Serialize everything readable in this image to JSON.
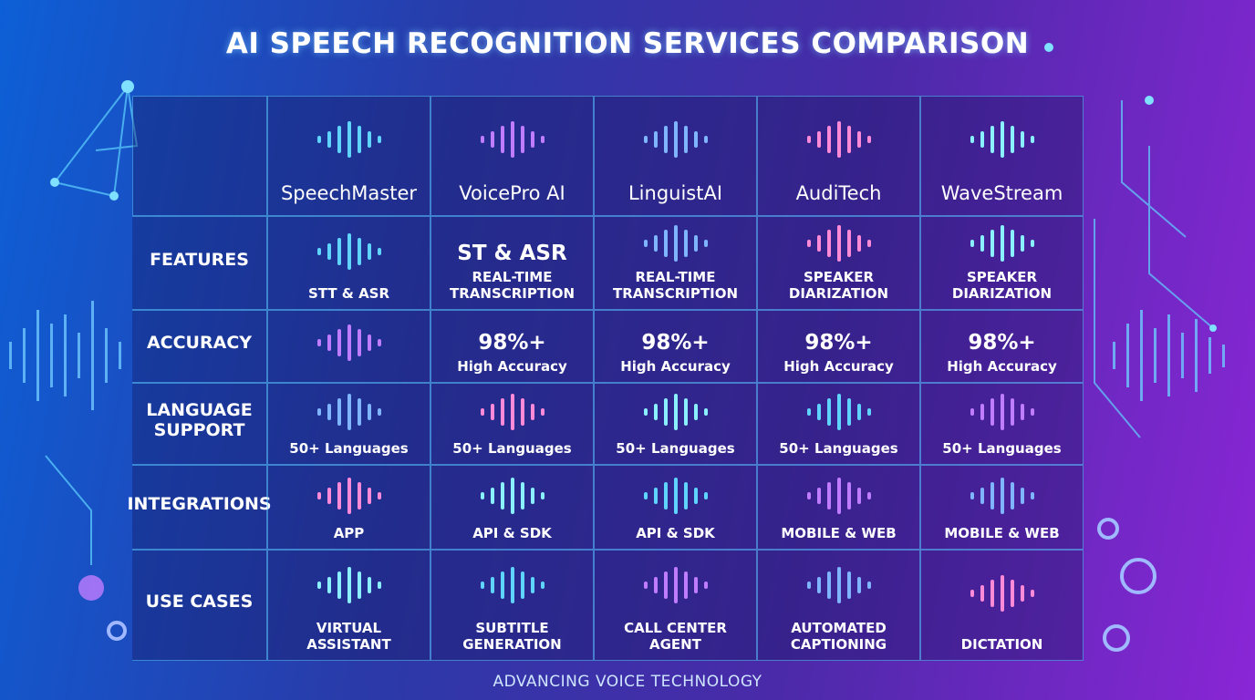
{
  "title": "AI SPEECH RECOGNITION SERVICES COMPARISON",
  "services": [
    "SpeechMaster",
    "VoicePro AI",
    "LinguistAI",
    "AudiTech",
    "WaveStream"
  ],
  "rows": [
    {
      "label": "FEATURES",
      "cells": [
        [
          "STT & ASR"
        ],
        [
          "ST & ASR",
          "REAL-TIME TRANSCRIPTION"
        ],
        [
          "REAL-TIME TRANSCRIPTION"
        ],
        [
          "SPEAKER DIARIZATION"
        ],
        [
          "SPEAKER DIARIZATION"
        ]
      ]
    },
    {
      "label": "ACCURACY",
      "cells": [
        [],
        [
          "98%+",
          "High Accuracy"
        ],
        [
          "98%+",
          "High Accuracy"
        ],
        [
          "98%+",
          "High Accuracy"
        ],
        [
          "98%+",
          "High Accuracy"
        ]
      ]
    },
    {
      "label": "LANGUAGE SUPPORT",
      "cells": [
        [
          "50+ Languages"
        ],
        [
          "50+ Languages"
        ],
        [
          "50+ Languages"
        ],
        [
          "50+ Languages"
        ],
        [
          "50+ Languages"
        ]
      ]
    },
    {
      "label": "INTEGRATIONS",
      "cells": [
        [
          "APP"
        ],
        [
          "API & SDK"
        ],
        [
          "API & SDK"
        ],
        [
          "MOBILE & WEB"
        ],
        [
          "MOBILE & WEB"
        ]
      ]
    },
    {
      "label": "USE CASES",
      "cells": [
        [
          "VIRTUAL ASSISTANT"
        ],
        [
          "SUBTITLE GENERATION"
        ],
        [
          "CALL CENTER AGENT"
        ],
        [
          "AUTOMATED CAPTIONING"
        ],
        [
          "DICTATION"
        ]
      ]
    }
  ],
  "footer": "ADVANCING VOICE TECHNOLOGY"
}
